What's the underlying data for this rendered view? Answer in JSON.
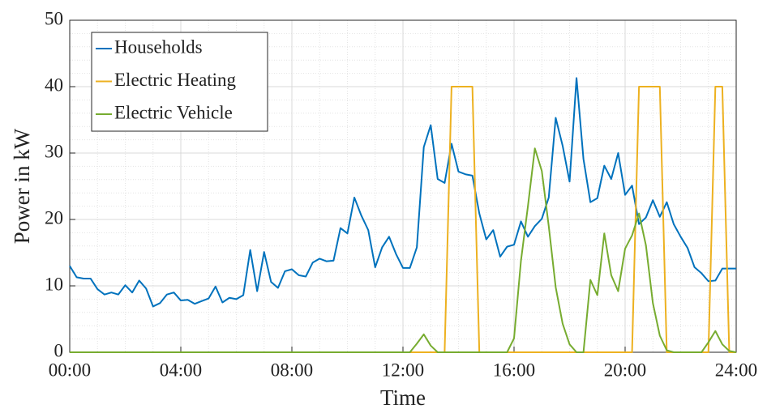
{
  "chart_data": {
    "type": "line",
    "xlabel": "Time",
    "ylabel": "Power in kW",
    "x": [
      0,
      0.25,
      0.5,
      0.75,
      1,
      1.25,
      1.5,
      1.75,
      2,
      2.25,
      2.5,
      2.75,
      3,
      3.25,
      3.5,
      3.75,
      4,
      4.25,
      4.5,
      4.75,
      5,
      5.25,
      5.5,
      5.75,
      6,
      6.25,
      6.5,
      6.75,
      7,
      7.25,
      7.5,
      7.75,
      8,
      8.25,
      8.5,
      8.75,
      9,
      9.25,
      9.5,
      9.75,
      10,
      10.25,
      10.5,
      10.75,
      11,
      11.25,
      11.5,
      11.75,
      12,
      12.25,
      12.5,
      12.75,
      13,
      13.25,
      13.5,
      13.75,
      14,
      14.25,
      14.5,
      14.75,
      15,
      15.25,
      15.5,
      15.75,
      16,
      16.25,
      16.5,
      16.75,
      17,
      17.25,
      17.5,
      17.75,
      18,
      18.25,
      18.5,
      18.75,
      19,
      19.25,
      19.5,
      19.75,
      20,
      20.25,
      20.5,
      20.75,
      21,
      21.25,
      21.5,
      21.75,
      22,
      22.25,
      22.5,
      22.75,
      23,
      23.25,
      23.5,
      23.75,
      24
    ],
    "series": [
      {
        "name": "Households",
        "color": "#0072BD",
        "values": [
          13.0,
          11.3,
          11.1,
          11.1,
          9.5,
          8.7,
          9.0,
          8.7,
          10.1,
          9.0,
          10.8,
          9.6,
          6.9,
          7.4,
          8.7,
          9.0,
          7.8,
          7.9,
          7.3,
          7.7,
          8.1,
          9.9,
          7.5,
          8.2,
          8.0,
          8.6,
          15.4,
          9.2,
          15.1,
          10.6,
          9.7,
          12.2,
          12.5,
          11.6,
          11.4,
          13.5,
          14.1,
          13.7,
          13.8,
          18.7,
          17.9,
          23.3,
          20.6,
          18.4,
          12.8,
          15.8,
          17.4,
          14.8,
          12.7,
          12.7,
          15.8,
          30.9,
          34.2,
          26.1,
          25.5,
          31.4,
          27.2,
          26.8,
          26.6,
          20.9,
          17.0,
          18.4,
          14.4,
          15.9,
          16.2,
          19.7,
          17.4,
          19.0,
          20.1,
          23.3,
          35.3,
          31.1,
          25.7,
          41.3,
          29.1,
          22.6,
          23.2,
          28.1,
          26.1,
          30.0,
          23.7,
          25.1,
          19.3,
          20.3,
          22.9,
          20.4,
          22.6,
          19.3,
          17.4,
          15.7,
          12.8,
          11.9,
          10.7,
          10.8,
          12.6,
          12.6,
          12.6
        ]
      },
      {
        "name": "Electric Heating",
        "color": "#EDB120",
        "values": [
          0,
          0,
          0,
          0,
          0,
          0,
          0,
          0,
          0,
          0,
          0,
          0,
          0,
          0,
          0,
          0,
          0,
          0,
          0,
          0,
          0,
          0,
          0,
          0,
          0,
          0,
          0,
          0,
          0,
          0,
          0,
          0,
          0,
          0,
          0,
          0,
          0,
          0,
          0,
          0,
          0,
          0,
          0,
          0,
          0,
          0,
          0,
          0,
          0,
          0,
          0,
          0,
          0,
          0,
          0,
          40,
          40,
          40,
          40,
          0,
          0,
          0,
          0,
          0,
          0,
          0,
          0,
          0,
          0,
          0,
          0,
          0,
          0,
          0,
          0,
          0,
          0,
          0,
          0,
          0,
          0,
          0,
          40,
          40,
          40,
          40,
          0,
          0,
          0,
          0,
          0,
          0,
          0,
          40,
          40,
          0,
          0
        ]
      },
      {
        "name": "Electric Vehicle",
        "color": "#77AC30",
        "values": [
          0,
          0,
          0,
          0,
          0,
          0,
          0,
          0,
          0,
          0,
          0,
          0,
          0,
          0,
          0,
          0,
          0,
          0,
          0,
          0,
          0,
          0,
          0,
          0,
          0,
          0,
          0,
          0,
          0,
          0,
          0,
          0,
          0,
          0,
          0,
          0,
          0,
          0,
          0,
          0,
          0,
          0,
          0,
          0,
          0,
          0,
          0,
          0,
          0,
          0,
          1.3,
          2.7,
          1.0,
          0,
          0,
          0,
          0,
          0,
          0,
          0,
          0,
          0,
          0,
          0,
          2.1,
          13.8,
          22,
          30.7,
          27.3,
          19,
          9.8,
          4.3,
          1.2,
          0,
          0,
          10.9,
          8.6,
          17.9,
          11.6,
          9.2,
          15.6,
          17.6,
          20.9,
          16.1,
          7.4,
          2.5,
          0.3,
          0,
          0,
          0,
          0,
          0,
          1.5,
          3.2,
          1.2,
          0.2,
          0
        ]
      }
    ],
    "xlim": [
      0,
      24
    ],
    "xticks": [
      {
        "value": 0,
        "label": "00:00"
      },
      {
        "value": 4,
        "label": "04:00"
      },
      {
        "value": 8,
        "label": "08:00"
      },
      {
        "value": 12,
        "label": "12:00"
      },
      {
        "value": 16,
        "label": "16:00"
      },
      {
        "value": 20,
        "label": "20:00"
      },
      {
        "value": 24,
        "label": "24:00"
      }
    ],
    "ylim": [
      0,
      50
    ],
    "yticks": [
      0,
      10,
      20,
      30,
      40,
      50
    ],
    "grid": true,
    "minor_grid": true,
    "legend": "upper left"
  }
}
